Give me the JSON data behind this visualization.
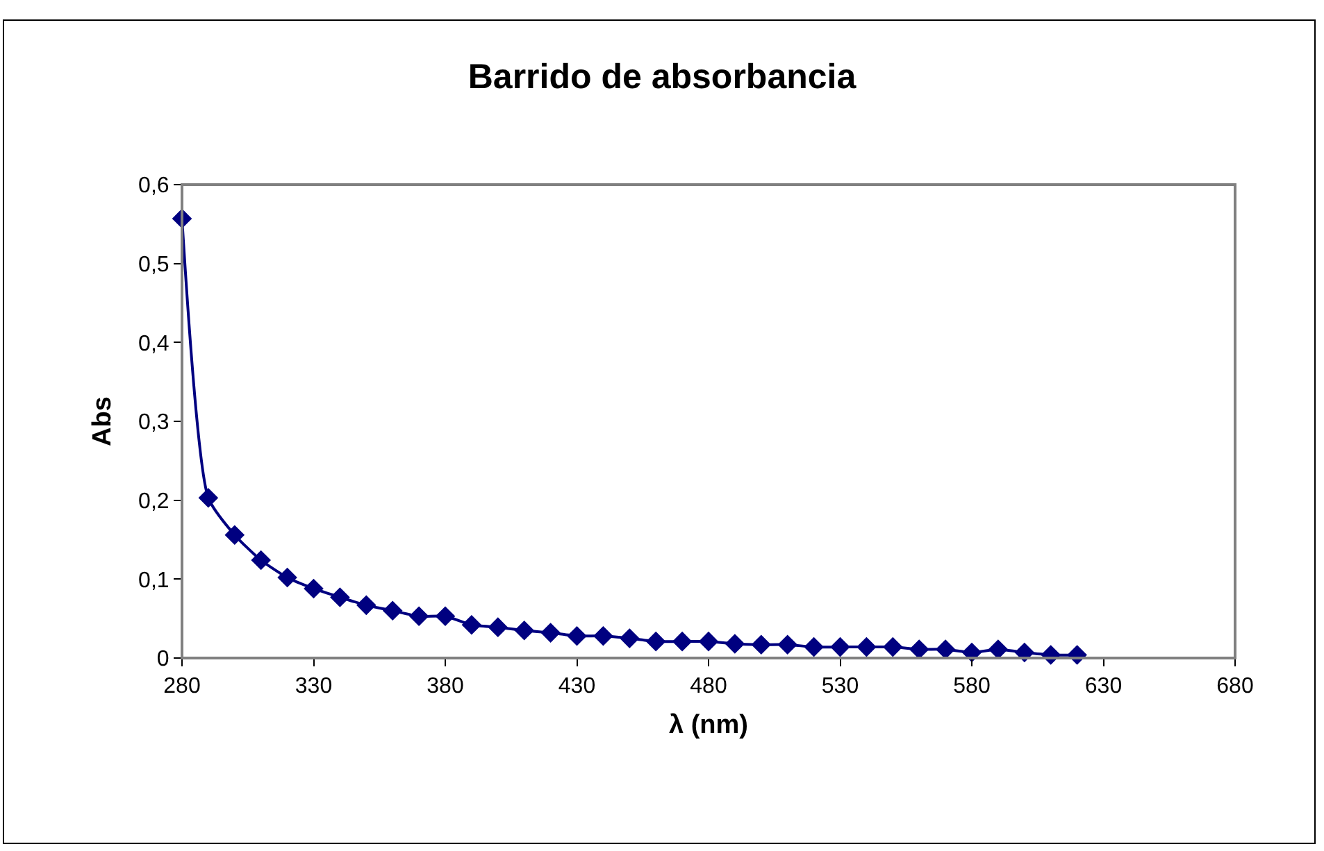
{
  "chart_data": {
    "type": "line",
    "title": "Barrido de absorbancia",
    "xlabel": "λ (nm)",
    "ylabel": "Abs",
    "x": [
      280,
      290,
      300,
      310,
      320,
      330,
      340,
      350,
      360,
      370,
      380,
      390,
      400,
      410,
      420,
      430,
      440,
      450,
      460,
      470,
      480,
      490,
      500,
      510,
      520,
      530,
      540,
      550,
      560,
      570,
      580,
      590,
      600,
      610,
      620
    ],
    "series": [
      {
        "color": "#000080",
        "values": [
          0.557,
          0.203,
          0.156,
          0.124,
          0.102,
          0.088,
          0.077,
          0.067,
          0.06,
          0.053,
          0.053,
          0.042,
          0.039,
          0.035,
          0.032,
          0.028,
          0.028,
          0.025,
          0.021,
          0.021,
          0.021,
          0.018,
          0.017,
          0.017,
          0.014,
          0.014,
          0.014,
          0.014,
          0.011,
          0.011,
          0.007,
          0.011,
          0.007,
          0.004,
          0.004
        ]
      }
    ],
    "xlim": [
      280,
      680
    ],
    "xticks": [
      280,
      330,
      380,
      430,
      480,
      530,
      580,
      630,
      680
    ],
    "ylim": [
      0,
      0.6
    ],
    "yticks": [
      {
        "value": 0,
        "label": "0"
      },
      {
        "value": 0.1,
        "label": "0,1"
      },
      {
        "value": 0.2,
        "label": "0,2"
      },
      {
        "value": 0.3,
        "label": "0,3"
      },
      {
        "value": 0.4,
        "label": "0,4"
      },
      {
        "value": 0.5,
        "label": "0,5"
      },
      {
        "value": 0.6,
        "label": "0,6"
      }
    ],
    "grid": false,
    "legend": false,
    "marker": "diamond",
    "line_style": "solid"
  }
}
